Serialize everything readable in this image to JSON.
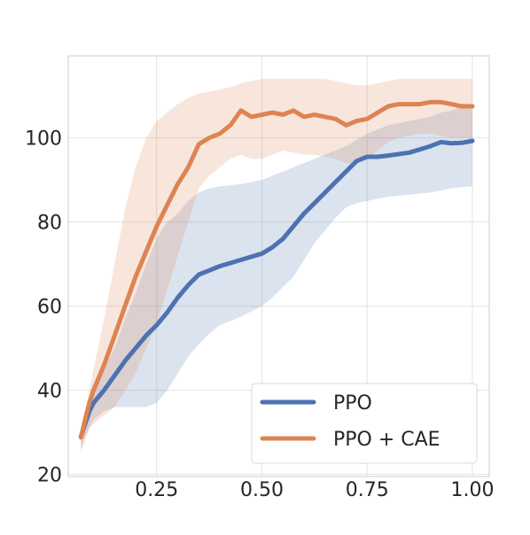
{
  "chart_data": {
    "type": "line",
    "title": "",
    "xlabel": "",
    "ylabel": "",
    "xlim": [
      0.04,
      1.04
    ],
    "ylim": [
      19.5,
      119.5
    ],
    "x_ticks": [
      0.25,
      0.5,
      0.75,
      1.0
    ],
    "x_tick_labels": [
      "0.25",
      "0.50",
      "0.75",
      "1.00"
    ],
    "y_ticks": [
      20,
      40,
      60,
      80,
      100
    ],
    "y_tick_labels": [
      "20",
      "40",
      "60",
      "80",
      "100"
    ],
    "grid": true,
    "legend_position": "lower-right",
    "series": [
      {
        "name": "PPO",
        "color": "#4c72b0",
        "x": [
          0.07,
          0.08,
          0.09,
          0.1,
          0.125,
          0.15,
          0.175,
          0.2,
          0.225,
          0.25,
          0.275,
          0.3,
          0.325,
          0.35,
          0.375,
          0.4,
          0.45,
          0.5,
          0.525,
          0.55,
          0.575,
          0.6,
          0.625,
          0.65,
          0.675,
          0.7,
          0.725,
          0.75,
          0.775,
          0.8,
          0.85,
          0.9,
          0.925,
          0.95,
          0.975,
          1.0
        ],
        "y": [
          29,
          32,
          35,
          37,
          40,
          43.5,
          47,
          50,
          53,
          55.5,
          58.5,
          62,
          65,
          67.5,
          68.5,
          69.5,
          71,
          72.5,
          74,
          76,
          79,
          82,
          84.5,
          87,
          89.5,
          92,
          94.5,
          95.5,
          95.5,
          95.8,
          96.5,
          98,
          99,
          98.7,
          98.8,
          99.3
        ],
        "upper": [
          29,
          33,
          37,
          40,
          45,
          50,
          57,
          63,
          70,
          76,
          80,
          82,
          85,
          87,
          88,
          88.5,
          89,
          90,
          91,
          92,
          93,
          94,
          95,
          96,
          97,
          98,
          99.5,
          101,
          102,
          103,
          104,
          105,
          106,
          106.5,
          107.5,
          108
        ],
        "lower": [
          26,
          29,
          31,
          33,
          35,
          36,
          36,
          36,
          36,
          37,
          40,
          44,
          48,
          51,
          53.5,
          55.5,
          57.5,
          60,
          62,
          64.5,
          67,
          71,
          75,
          78,
          81,
          83.5,
          84.5,
          85,
          85.5,
          86,
          86.5,
          87,
          87.5,
          88,
          88.3,
          88.5
        ]
      },
      {
        "name": "PPO + CAE",
        "color": "#dd8452",
        "x": [
          0.07,
          0.08,
          0.09,
          0.1,
          0.125,
          0.15,
          0.175,
          0.2,
          0.225,
          0.25,
          0.275,
          0.3,
          0.325,
          0.35,
          0.375,
          0.4,
          0.425,
          0.45,
          0.475,
          0.5,
          0.525,
          0.55,
          0.575,
          0.6,
          0.625,
          0.65,
          0.675,
          0.7,
          0.725,
          0.75,
          0.775,
          0.8,
          0.825,
          0.85,
          0.875,
          0.9,
          0.925,
          0.95,
          0.975,
          1.0
        ],
        "y": [
          28.8,
          33,
          37,
          40,
          46,
          53,
          60,
          67,
          73,
          79,
          84,
          89,
          93,
          98.5,
          100,
          101,
          103,
          106.5,
          105,
          105.5,
          106,
          105.5,
          106.5,
          105,
          105.5,
          105,
          104.5,
          103,
          104,
          104.5,
          106,
          107.5,
          108,
          108,
          108,
          108.5,
          108.5,
          108,
          107.5,
          107.5
        ],
        "upper": [
          30,
          35,
          40,
          45,
          57,
          70,
          83,
          93,
          100,
          104,
          106,
          108,
          109.5,
          110.5,
          111,
          111.5,
          112,
          113,
          113.5,
          114,
          114,
          114,
          114,
          114,
          114,
          114,
          113.5,
          113,
          112.5,
          112.5,
          113,
          113.5,
          114,
          114,
          114,
          114,
          114,
          114,
          114,
          114
        ],
        "lower": [
          25,
          28,
          31,
          32,
          34,
          36,
          40,
          44,
          50,
          56,
          64,
          72,
          80,
          88,
          91,
          93,
          95,
          96,
          95,
          95,
          96,
          97,
          96.5,
          96,
          96,
          95.5,
          95,
          94,
          94,
          95,
          97,
          99,
          100,
          100.5,
          101,
          101,
          100.5,
          100,
          100,
          100
        ]
      }
    ]
  }
}
